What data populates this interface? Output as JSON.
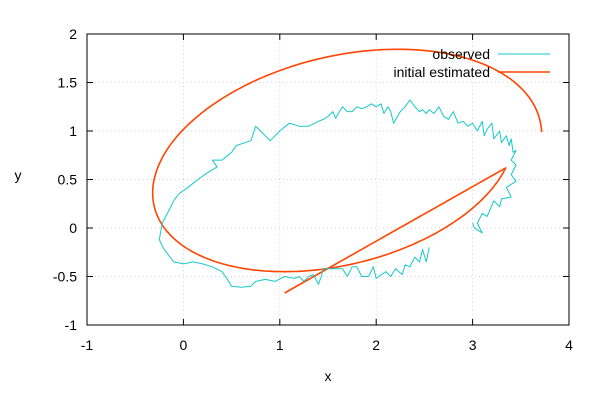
{
  "chart_data": {
    "type": "line",
    "xlabel": "x",
    "ylabel": "y",
    "xlim": [
      -1,
      4
    ],
    "ylim": [
      -1,
      2
    ],
    "xticks": [
      -1,
      0,
      1,
      2,
      3,
      4
    ],
    "yticks": [
      -1,
      -0.5,
      0,
      0.5,
      1,
      1.5,
      2
    ],
    "xtick_labels": [
      "-1",
      "0",
      "1",
      "2",
      "3",
      "4"
    ],
    "ytick_labels": [
      "-1",
      "-0.5",
      "0",
      "0.5",
      "1",
      "1.5",
      "2"
    ],
    "grid": true,
    "legend_position": "top-right",
    "series": [
      {
        "name": "observed",
        "color": "#16c9c9",
        "stroke_width": 1,
        "points": [
          [
            2.55,
            -0.2
          ],
          [
            2.52,
            -0.35
          ],
          [
            2.48,
            -0.22
          ],
          [
            2.45,
            -0.35
          ],
          [
            2.4,
            -0.3
          ],
          [
            2.35,
            -0.4
          ],
          [
            2.3,
            -0.38
          ],
          [
            2.27,
            -0.48
          ],
          [
            2.2,
            -0.42
          ],
          [
            2.15,
            -0.5
          ],
          [
            2.1,
            -0.45
          ],
          [
            2.0,
            -0.52
          ],
          [
            1.97,
            -0.4
          ],
          [
            1.92,
            -0.5
          ],
          [
            1.85,
            -0.5
          ],
          [
            1.8,
            -0.4
          ],
          [
            1.75,
            -0.4
          ],
          [
            1.7,
            -0.5
          ],
          [
            1.65,
            -0.42
          ],
          [
            1.55,
            -0.42
          ],
          [
            1.45,
            -0.42
          ],
          [
            1.43,
            -0.5
          ],
          [
            1.4,
            -0.58
          ],
          [
            1.35,
            -0.48
          ],
          [
            1.3,
            -0.5
          ],
          [
            1.25,
            -0.55
          ],
          [
            1.2,
            -0.5
          ],
          [
            1.15,
            -0.52
          ],
          [
            1.05,
            -0.5
          ],
          [
            0.95,
            -0.55
          ],
          [
            0.85,
            -0.53
          ],
          [
            0.75,
            -0.55
          ],
          [
            0.7,
            -0.6
          ],
          [
            0.6,
            -0.61
          ],
          [
            0.5,
            -0.6
          ],
          [
            0.45,
            -0.52
          ],
          [
            0.4,
            -0.45
          ],
          [
            0.3,
            -0.4
          ],
          [
            0.2,
            -0.37
          ],
          [
            0.1,
            -0.35
          ],
          [
            0.0,
            -0.37
          ],
          [
            -0.1,
            -0.35
          ],
          [
            -0.2,
            -0.22
          ],
          [
            -0.25,
            -0.12
          ],
          [
            -0.22,
            0.05
          ],
          [
            -0.15,
            0.18
          ],
          [
            -0.1,
            0.28
          ],
          [
            -0.05,
            0.35
          ],
          [
            0.05,
            0.42
          ],
          [
            0.15,
            0.5
          ],
          [
            0.25,
            0.57
          ],
          [
            0.35,
            0.63
          ],
          [
            0.3,
            0.7
          ],
          [
            0.4,
            0.7
          ],
          [
            0.5,
            0.78
          ],
          [
            0.55,
            0.85
          ],
          [
            0.7,
            0.9
          ],
          [
            0.75,
            1.05
          ],
          [
            0.8,
            1.0
          ],
          [
            0.9,
            0.9
          ],
          [
            1.0,
            1.0
          ],
          [
            1.1,
            1.08
          ],
          [
            1.2,
            1.05
          ],
          [
            1.3,
            1.05
          ],
          [
            1.4,
            1.1
          ],
          [
            1.45,
            1.12
          ],
          [
            1.5,
            1.15
          ],
          [
            1.55,
            1.2
          ],
          [
            1.58,
            1.13
          ],
          [
            1.6,
            1.17
          ],
          [
            1.65,
            1.25
          ],
          [
            1.7,
            1.2
          ],
          [
            1.75,
            1.2
          ],
          [
            1.8,
            1.25
          ],
          [
            1.85,
            1.23
          ],
          [
            1.9,
            1.25
          ],
          [
            1.95,
            1.28
          ],
          [
            2.0,
            1.25
          ],
          [
            2.05,
            1.28
          ],
          [
            2.08,
            1.18
          ],
          [
            2.12,
            1.25
          ],
          [
            2.15,
            1.2
          ],
          [
            2.18,
            1.08
          ],
          [
            2.25,
            1.2
          ],
          [
            2.3,
            1.25
          ],
          [
            2.35,
            1.32
          ],
          [
            2.4,
            1.25
          ],
          [
            2.45,
            1.2
          ],
          [
            2.48,
            1.22
          ],
          [
            2.52,
            1.18
          ],
          [
            2.55,
            1.22
          ],
          [
            2.6,
            1.18
          ],
          [
            2.65,
            1.25
          ],
          [
            2.7,
            1.15
          ],
          [
            2.75,
            1.12
          ],
          [
            2.8,
            1.2
          ],
          [
            2.85,
            1.08
          ],
          [
            2.9,
            1.1
          ],
          [
            2.95,
            1.05
          ],
          [
            3.0,
            1.08
          ],
          [
            3.05,
            1.0
          ],
          [
            3.1,
            1.1
          ],
          [
            3.12,
            0.95
          ],
          [
            3.15,
            1.02
          ],
          [
            3.2,
            1.08
          ],
          [
            3.22,
            0.92
          ],
          [
            3.28,
            1.0
          ],
          [
            3.3,
            0.88
          ],
          [
            3.35,
            0.95
          ],
          [
            3.38,
            0.85
          ],
          [
            3.4,
            0.92
          ],
          [
            3.42,
            0.78
          ],
          [
            3.45,
            0.8
          ],
          [
            3.4,
            0.7
          ],
          [
            3.45,
            0.65
          ],
          [
            3.4,
            0.55
          ],
          [
            3.45,
            0.48
          ],
          [
            3.35,
            0.42
          ],
          [
            3.4,
            0.32
          ],
          [
            3.3,
            0.3
          ],
          [
            3.28,
            0.22
          ],
          [
            3.22,
            0.28
          ],
          [
            3.15,
            0.12
          ],
          [
            3.1,
            0.15
          ],
          [
            3.05,
            0.05
          ],
          [
            3.1,
            -0.05
          ],
          [
            3.02,
            0.0
          ],
          [
            3.0,
            0.05
          ]
        ]
      },
      {
        "name": "initial estimated",
        "color": "#ff4500",
        "stroke_width": 1.6
      }
    ]
  }
}
